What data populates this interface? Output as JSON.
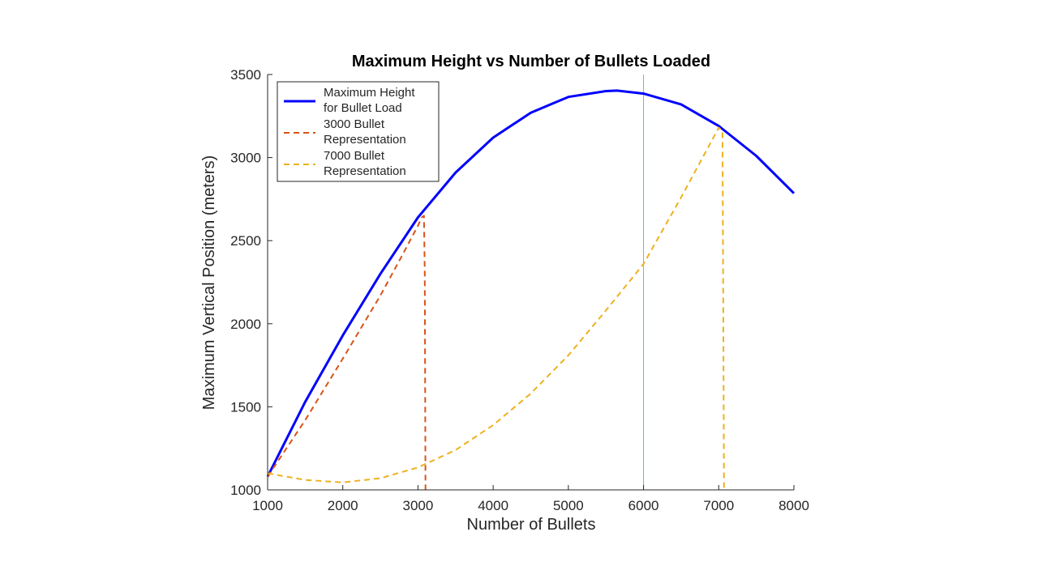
{
  "chart_data": {
    "type": "line",
    "title": "Maximum Height vs Number of Bullets Loaded",
    "xlabel": "Number of Bullets",
    "ylabel": "Maximum Vertical Position (meters)",
    "xlim": [
      1000,
      8000
    ],
    "ylim": [
      1000,
      3500
    ],
    "xticks": [
      1000,
      2000,
      3000,
      4000,
      5000,
      6000,
      7000,
      8000
    ],
    "yticks": [
      1000,
      1500,
      2000,
      2500,
      3000,
      3500
    ],
    "grid": false,
    "legend_position": "top-left",
    "vertical_reference_line": {
      "x": 6000,
      "color": "#4DBEEE"
    },
    "series": [
      {
        "name": "Maximum Height\nfor Bullet Load",
        "style": "solid",
        "color": "#0000FF",
        "x": [
          1000,
          1500,
          2000,
          2500,
          3000,
          3500,
          4000,
          4500,
          5000,
          5500,
          5650,
          6000,
          6500,
          7000,
          7500,
          8000
        ],
        "y": [
          1080,
          1530,
          1930,
          2300,
          2640,
          2910,
          3120,
          3270,
          3365,
          3400,
          3403,
          3385,
          3320,
          3190,
          3010,
          2785
        ]
      },
      {
        "name": "3000 Bullet\nRepresentation",
        "style": "dashed",
        "color": "#D95319",
        "x": [
          1000,
          1500,
          2000,
          2500,
          2800,
          3000,
          3050,
          3080,
          3090,
          3100
        ],
        "y": [
          1080,
          1420,
          1790,
          2170,
          2420,
          2590,
          2640,
          2650,
          2300,
          1000
        ]
      },
      {
        "name": "7000 Bullet\nRepresentation",
        "style": "dashed",
        "color": "#EDB120",
        "x": [
          1000,
          1500,
          2000,
          2500,
          3000,
          3500,
          4000,
          4500,
          5000,
          5500,
          6000,
          6500,
          7000,
          7050,
          7060,
          7070
        ],
        "y": [
          1100,
          1060,
          1045,
          1070,
          1135,
          1240,
          1390,
          1580,
          1810,
          2080,
          2360,
          2760,
          3180,
          3160,
          2200,
          1000
        ]
      }
    ]
  }
}
